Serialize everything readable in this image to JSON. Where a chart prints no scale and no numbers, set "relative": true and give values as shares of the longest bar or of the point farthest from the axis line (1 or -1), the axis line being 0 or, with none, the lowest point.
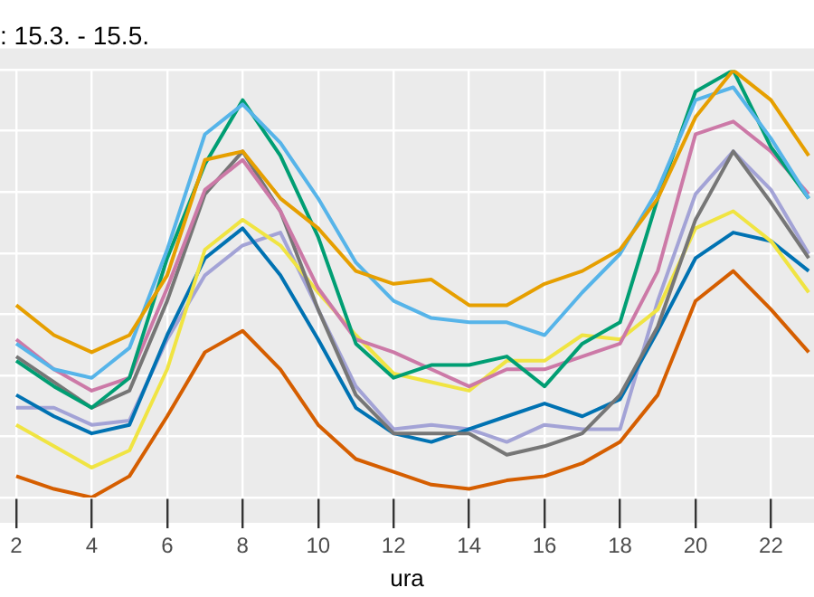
{
  "chart_data": {
    "type": "line",
    "title": ": 15.3. - 15.5.",
    "xlabel": "ura",
    "relative": true,
    "x": [
      2,
      3,
      4,
      5,
      6,
      7,
      8,
      9,
      10,
      11,
      12,
      13,
      14,
      15,
      16,
      17,
      18,
      19,
      20,
      21,
      22,
      23
    ],
    "xlim": [
      1.57,
      23.14
    ],
    "xticks": [
      2,
      4,
      6,
      8,
      10,
      12,
      14,
      16,
      18,
      20,
      22
    ],
    "grid": true,
    "legend": false,
    "marker": "none",
    "line_style": "solid",
    "series": [
      {
        "color": "#e69f00",
        "values": [
          0.45,
          0.38,
          0.34,
          0.38,
          0.52,
          0.79,
          0.81,
          0.7,
          0.63,
          0.53,
          0.5,
          0.51,
          0.45,
          0.45,
          0.5,
          0.53,
          0.58,
          0.7,
          0.89,
          1.0,
          0.93,
          0.8
        ]
      },
      {
        "color": "#56b4e9",
        "values": [
          0.36,
          0.3,
          0.28,
          0.35,
          0.58,
          0.85,
          0.92,
          0.83,
          0.7,
          0.55,
          0.46,
          0.42,
          0.41,
          0.41,
          0.38,
          0.48,
          0.57,
          0.72,
          0.93,
          0.96,
          0.84,
          0.7
        ]
      },
      {
        "color": "#009e73",
        "values": [
          0.32,
          0.26,
          0.21,
          0.28,
          0.56,
          0.78,
          0.93,
          0.8,
          0.61,
          0.36,
          0.28,
          0.31,
          0.31,
          0.33,
          0.26,
          0.36,
          0.41,
          0.7,
          0.95,
          1.0,
          0.82,
          0.7
        ]
      },
      {
        "color": "#cc79a7",
        "values": [
          0.37,
          0.3,
          0.25,
          0.28,
          0.49,
          0.72,
          0.79,
          0.67,
          0.49,
          0.37,
          0.34,
          0.3,
          0.26,
          0.3,
          0.3,
          0.33,
          0.36,
          0.53,
          0.85,
          0.88,
          0.81,
          0.71
        ]
      },
      {
        "color": "#767676",
        "values": [
          0.33,
          0.27,
          0.21,
          0.25,
          0.46,
          0.71,
          0.81,
          0.67,
          0.44,
          0.24,
          0.15,
          0.15,
          0.15,
          0.1,
          0.12,
          0.15,
          0.24,
          0.4,
          0.65,
          0.81,
          0.69,
          0.56
        ]
      },
      {
        "color": "#f0e442",
        "values": [
          0.17,
          0.12,
          0.07,
          0.11,
          0.3,
          0.58,
          0.65,
          0.59,
          0.48,
          0.38,
          0.29,
          0.27,
          0.25,
          0.32,
          0.32,
          0.38,
          0.37,
          0.44,
          0.63,
          0.67,
          0.6,
          0.48
        ]
      },
      {
        "color": "#0072b2",
        "values": [
          0.24,
          0.19,
          0.15,
          0.17,
          0.38,
          0.56,
          0.63,
          0.52,
          0.37,
          0.21,
          0.15,
          0.13,
          0.16,
          0.19,
          0.22,
          0.19,
          0.23,
          0.39,
          0.56,
          0.62,
          0.6,
          0.53
        ]
      },
      {
        "color": "#a3a3d6",
        "values": [
          0.21,
          0.21,
          0.17,
          0.18,
          0.37,
          0.52,
          0.59,
          0.62,
          0.44,
          0.26,
          0.16,
          0.17,
          0.16,
          0.13,
          0.17,
          0.16,
          0.16,
          0.46,
          0.71,
          0.81,
          0.72,
          0.57
        ]
      },
      {
        "color": "#d55e00",
        "values": [
          0.05,
          0.02,
          0.0,
          0.05,
          0.19,
          0.34,
          0.39,
          0.3,
          0.17,
          0.09,
          0.06,
          0.03,
          0.02,
          0.04,
          0.05,
          0.08,
          0.13,
          0.24,
          0.46,
          0.53,
          0.44,
          0.34
        ]
      }
    ]
  }
}
